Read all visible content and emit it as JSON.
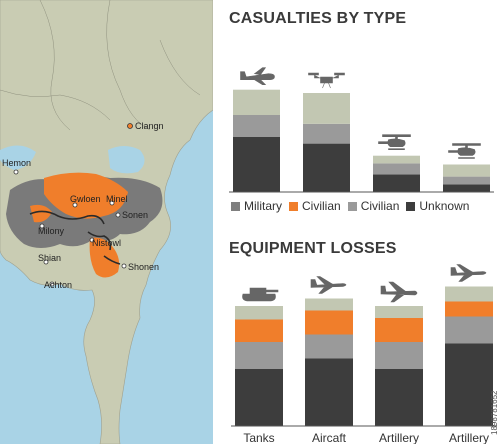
{
  "colors": {
    "military": "#2e2e2e",
    "civilian_orange": "#f07e2b",
    "civilian_gray": "#8c8c8c",
    "light": "#c2c7b2",
    "unknown": "#3d3d3d",
    "water": "#a9d3e6",
    "land": "#c9ccb3",
    "region": "#7a7a7a",
    "hot": "#f07e2b"
  },
  "map": {
    "labels": [
      {
        "text": "Clangn"
      },
      {
        "text": "Hemon"
      },
      {
        "text": "Gwloen"
      },
      {
        "text": "Minel"
      },
      {
        "text": "Sonen"
      },
      {
        "text": "Milony"
      },
      {
        "text": "Nistowl"
      },
      {
        "text": "Shian"
      },
      {
        "text": "Shonen"
      },
      {
        "text": "Achton"
      }
    ]
  },
  "legend": [
    {
      "label": "Military",
      "color": "#7f7f7f"
    },
    {
      "label": "Civilian",
      "color": "#f07e2b"
    },
    {
      "label": "Civilian",
      "color": "#9a9a9a"
    },
    {
      "label": "Unknown",
      "color": "#3d3d3d"
    }
  ],
  "chart_data": [
    {
      "type": "bar",
      "title": "CASUALTIES BY TYPE",
      "icons": [
        "airplane-icon",
        "drone-icon",
        "helicopter-icon",
        "helicopter-icon"
      ],
      "categories": [
        "",
        "",
        "",
        ""
      ],
      "ylim": [
        0,
        100
      ],
      "series": [
        {
          "color": "#3d3d3d",
          "values": [
            50,
            44,
            16,
            7
          ]
        },
        {
          "color": "#9a9a9a",
          "values": [
            20,
            18,
            10,
            7
          ]
        },
        {
          "color": "#c2c7b2",
          "values": [
            23,
            28,
            7,
            11
          ]
        }
      ]
    },
    {
      "type": "bar",
      "title": "EQUIPMENT LOSSES",
      "icons": [
        "tank-icon",
        "jet-icon",
        "plane-icon",
        "jet-icon"
      ],
      "categories": [
        "Tanks",
        "Aircaft",
        "Artillery",
        "Artillery"
      ],
      "ylim": [
        0,
        100
      ],
      "series": [
        {
          "color": "#3d3d3d",
          "values": [
            38,
            45,
            38,
            55
          ]
        },
        {
          "color": "#9a9a9a",
          "values": [
            18,
            16,
            18,
            18
          ]
        },
        {
          "color": "#f07e2b",
          "values": [
            15,
            16,
            16,
            10
          ]
        },
        {
          "color": "#c2c7b2",
          "values": [
            9,
            8,
            8,
            10
          ]
        }
      ]
    }
  ],
  "stock_id": "1898781652"
}
